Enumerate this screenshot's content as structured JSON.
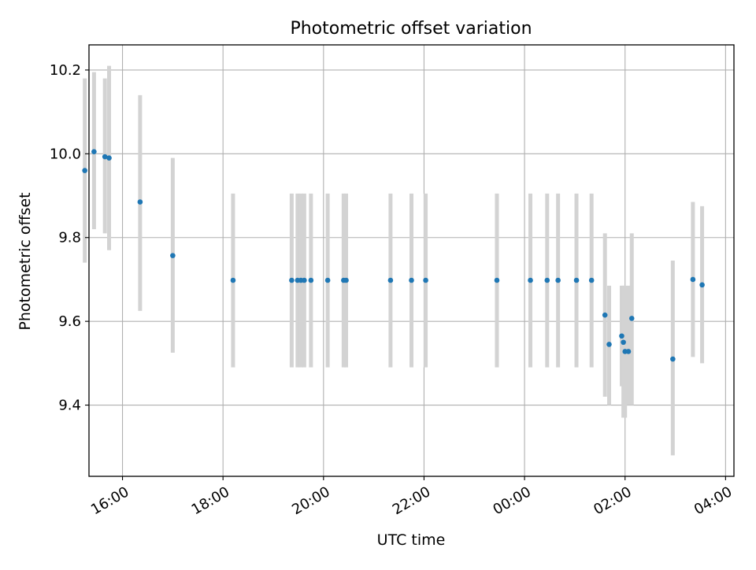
{
  "chart_data": {
    "type": "scatter",
    "title": "Photometric offset variation",
    "xlabel": "UTC time",
    "ylabel": "Photometric offset",
    "x_unit": "hours",
    "xlim": [
      "15:20",
      "28:10"
    ],
    "ylim": [
      9.23,
      10.26
    ],
    "grid": true,
    "x_ticks": [
      {
        "label": "16:00",
        "t": "16:00"
      },
      {
        "label": "18:00",
        "t": "18:00"
      },
      {
        "label": "20:00",
        "t": "20:00"
      },
      {
        "label": "22:00",
        "t": "22:00"
      },
      {
        "label": "00:00",
        "t": "24:00"
      },
      {
        "label": "02:00",
        "t": "26:00"
      },
      {
        "label": "04:00",
        "t": "28:00"
      }
    ],
    "y_ticks": [
      "9.4",
      "9.6",
      "9.8",
      "10.0",
      "10.2"
    ],
    "series": [
      {
        "marker_color": "#1f77b4",
        "errorbar_color": "#d3d3d3",
        "points": [
          {
            "t": "15:15",
            "y": 9.96,
            "ylo": 9.74,
            "yhi": 10.18
          },
          {
            "t": "15:26",
            "y": 10.005,
            "ylo": 9.82,
            "yhi": 10.195
          },
          {
            "t": "15:39",
            "y": 9.993,
            "ylo": 9.81,
            "yhi": 10.18
          },
          {
            "t": "15:44",
            "y": 9.99,
            "ylo": 9.77,
            "yhi": 10.21
          },
          {
            "t": "16:21",
            "y": 9.885,
            "ylo": 9.625,
            "yhi": 10.14
          },
          {
            "t": "17:00",
            "y": 9.757,
            "ylo": 9.525,
            "yhi": 9.99
          },
          {
            "t": "18:12",
            "y": 9.698,
            "ylo": 9.49,
            "yhi": 9.905
          },
          {
            "t": "19:22",
            "y": 9.698,
            "ylo": 9.49,
            "yhi": 9.905
          },
          {
            "t": "19:29",
            "y": 9.698,
            "ylo": 9.49,
            "yhi": 9.905
          },
          {
            "t": "19:33",
            "y": 9.698,
            "ylo": 9.49,
            "yhi": 9.905
          },
          {
            "t": "19:37",
            "y": 9.698,
            "ylo": 9.49,
            "yhi": 9.905
          },
          {
            "t": "19:45",
            "y": 9.698,
            "ylo": 9.49,
            "yhi": 9.905
          },
          {
            "t": "20:05",
            "y": 9.698,
            "ylo": 9.49,
            "yhi": 9.905
          },
          {
            "t": "20:24",
            "y": 9.698,
            "ylo": 9.49,
            "yhi": 9.905
          },
          {
            "t": "20:27",
            "y": 9.698,
            "ylo": 9.49,
            "yhi": 9.905
          },
          {
            "t": "21:20",
            "y": 9.698,
            "ylo": 9.49,
            "yhi": 9.905
          },
          {
            "t": "21:45",
            "y": 9.698,
            "ylo": 9.49,
            "yhi": 9.905
          },
          {
            "t": "22:02",
            "y": 9.698,
            "ylo": 9.49,
            "yhi": 9.905
          },
          {
            "t": "23:27",
            "y": 9.698,
            "ylo": 9.49,
            "yhi": 9.905
          },
          {
            "t": "24:07",
            "y": 9.698,
            "ylo": 9.49,
            "yhi": 9.905
          },
          {
            "t": "24:27",
            "y": 9.698,
            "ylo": 9.49,
            "yhi": 9.905
          },
          {
            "t": "24:40",
            "y": 9.698,
            "ylo": 9.49,
            "yhi": 9.905
          },
          {
            "t": "25:02",
            "y": 9.698,
            "ylo": 9.49,
            "yhi": 9.905
          },
          {
            "t": "25:20",
            "y": 9.698,
            "ylo": 9.49,
            "yhi": 9.905
          },
          {
            "t": "25:36",
            "y": 9.615,
            "ylo": 9.42,
            "yhi": 9.81
          },
          {
            "t": "25:41",
            "y": 9.545,
            "ylo": 9.4,
            "yhi": 9.685
          },
          {
            "t": "25:56",
            "y": 9.565,
            "ylo": 9.445,
            "yhi": 9.685
          },
          {
            "t": "25:58",
            "y": 9.55,
            "ylo": 9.37,
            "yhi": 9.685
          },
          {
            "t": "26:00",
            "y": 9.528,
            "ylo": 9.37,
            "yhi": 9.685
          },
          {
            "t": "26:04",
            "y": 9.528,
            "ylo": 9.4,
            "yhi": 9.685
          },
          {
            "t": "26:08",
            "y": 9.607,
            "ylo": 9.4,
            "yhi": 9.81
          },
          {
            "t": "26:57",
            "y": 9.51,
            "ylo": 9.28,
            "yhi": 9.745
          },
          {
            "t": "27:21",
            "y": 9.7,
            "ylo": 9.515,
            "yhi": 9.885
          },
          {
            "t": "27:32",
            "y": 9.687,
            "ylo": 9.5,
            "yhi": 9.875
          }
        ]
      }
    ]
  }
}
